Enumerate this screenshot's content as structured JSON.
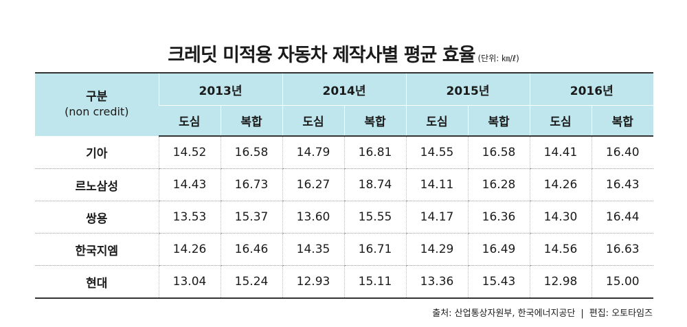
{
  "title": {
    "main": "크레딧 미적용 자동차 제작사별 평균 효율",
    "unit": "(단위: ㎞/ℓ)"
  },
  "table": {
    "corner_label": "구분",
    "corner_sublabel": "(non credit)",
    "years": [
      "2013년",
      "2014년",
      "2015년",
      "2016년"
    ],
    "sub_headers": [
      "도심",
      "복합"
    ],
    "rows": [
      {
        "maker": "기아",
        "values": [
          "14.52",
          "16.58",
          "14.79",
          "16.81",
          "14.55",
          "16.58",
          "14.41",
          "16.40"
        ]
      },
      {
        "maker": "르노삼성",
        "values": [
          "14.43",
          "16.73",
          "16.27",
          "18.74",
          "14.11",
          "16.28",
          "14.26",
          "16.43"
        ]
      },
      {
        "maker": "쌍용",
        "values": [
          "13.53",
          "15.37",
          "13.60",
          "15.55",
          "14.17",
          "16.36",
          "14.30",
          "16.44"
        ]
      },
      {
        "maker": "한국지엠",
        "values": [
          "14.26",
          "16.46",
          "14.35",
          "16.71",
          "14.29",
          "16.49",
          "14.56",
          "16.63"
        ]
      },
      {
        "maker": "현대",
        "values": [
          "13.04",
          "15.24",
          "12.93",
          "15.11",
          "13.36",
          "15.43",
          "12.98",
          "15.00"
        ]
      }
    ]
  },
  "source": {
    "text": "출처: 산업통상자원부, 한국에너지공단",
    "separator": "|",
    "editor": "편집: 오토타임즈"
  }
}
